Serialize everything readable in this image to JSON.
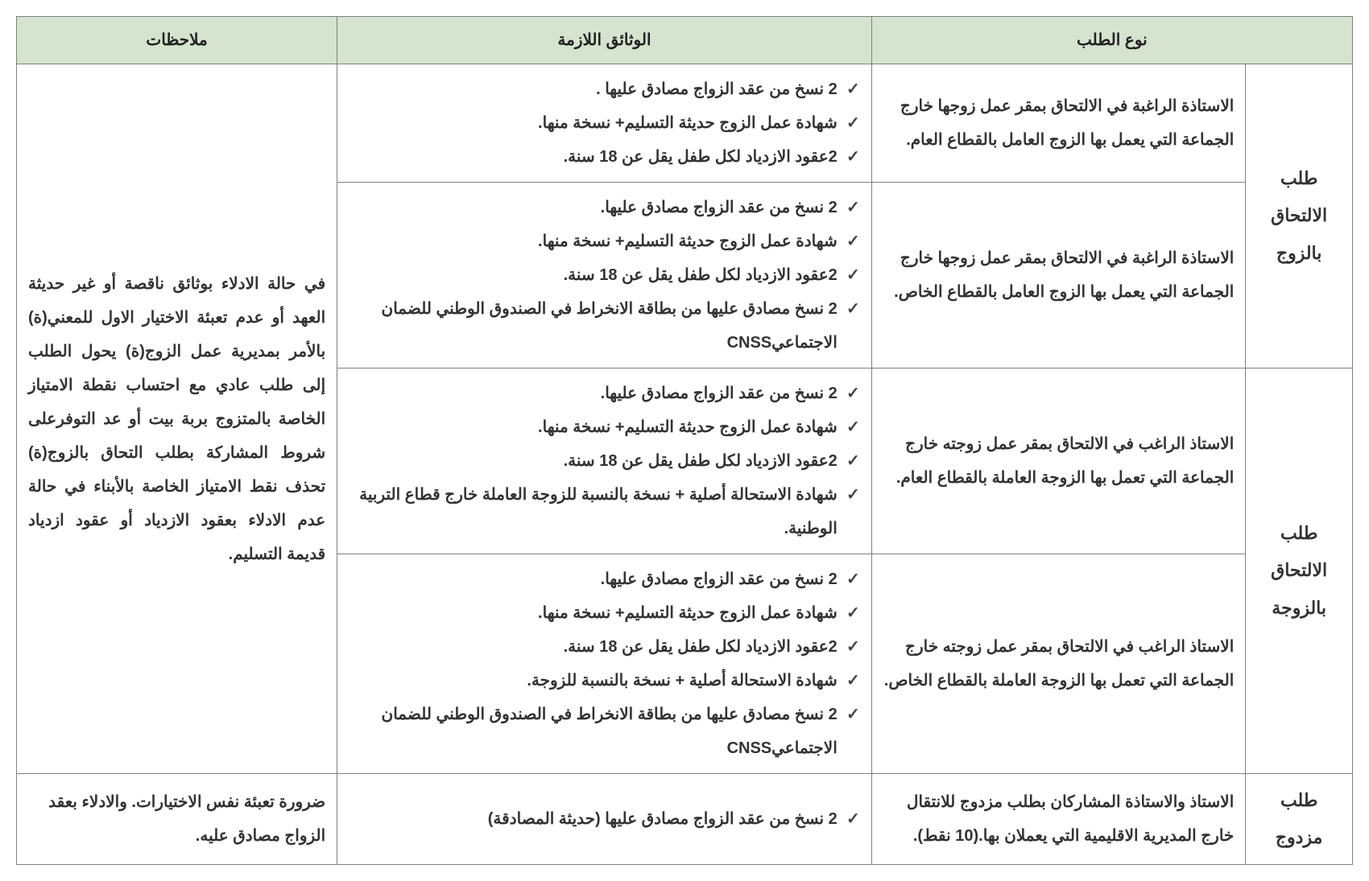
{
  "colors": {
    "header_bg": "#d5e3cf",
    "border": "#808080",
    "text": "#333333",
    "background": "#ffffff"
  },
  "typography": {
    "base_fontsize": 20,
    "header_fontsize": 20,
    "cat_fontsize": 22,
    "line_height": 2.1,
    "weight_body": 600,
    "weight_header": 700
  },
  "columns": {
    "widths_pct": [
      8,
      28,
      40,
      24
    ]
  },
  "headers": {
    "type": "نوع الطلب",
    "docs": "الوثائق اللازمة",
    "notes": "ملاحظات"
  },
  "groups": [
    {
      "category": "طلب الالتحاق بالزوج",
      "rows": [
        {
          "desc": "الاستاذة الراغبة في الالتحاق بمقر عمل زوجها خارج الجماعة التي يعمل بها الزوج العامل بالقطاع العام.",
          "docs": [
            "2 نسخ من عقد الزواج مصادق عليها .",
            "شهادة عمل الزوج حديثة التسليم+ نسخة منها.",
            "2عقود الازدياد لكل طفل يقل عن 18 سنة."
          ]
        },
        {
          "desc": "الاستاذة الراغبة في الالتحاق بمقر عمل زوجها خارج الجماعة التي يعمل بها الزوج العامل بالقطاع الخاص.",
          "docs": [
            "2 نسخ من عقد الزواج مصادق عليها.",
            "شهادة عمل الزوج حديثة التسليم+ نسخة منها.",
            "2عقود الازدياد لكل طفل يقل عن 18 سنة.",
            "2 نسخ مصادق عليها من بطاقة الانخراط في الصندوق الوطني للضمان الاجتماعيCNSS"
          ]
        }
      ]
    },
    {
      "category": "طلب الالتحاق بالزوجة",
      "rows": [
        {
          "desc": "الاستاذ الراغب في الالتحاق بمقر عمل زوجته خارج الجماعة التي تعمل بها الزوجة العاملة بالقطاع العام.",
          "docs": [
            "2 نسخ من عقد الزواج مصادق عليها.",
            "شهادة عمل الزوج حديثة التسليم+ نسخة منها.",
            "2عقود الازدياد لكل طفل يقل عن 18 سنة.",
            "شهادة الاستحالة أصلية + نسخة بالنسبة للزوجة العاملة خارج قطاع التربية الوطنية."
          ]
        },
        {
          "desc": "الاستاذ الراغب في الالتحاق بمقر عمل زوجته خارج الجماعة التي تعمل بها الزوجة العاملة بالقطاع الخاص.",
          "docs": [
            "2 نسخ من عقد الزواج مصادق عليها.",
            "شهادة عمل الزوج حديثة التسليم+ نسخة منها.",
            "2عقود الازدياد لكل طفل يقل عن 18 سنة.",
            "شهادة الاستحالة أصلية + نسخة بالنسبة للزوجة.",
            "2 نسخ مصادق عليها من بطاقة الانخراط في الصندوق الوطني للضمان الاجتماعيCNSS"
          ]
        }
      ]
    }
  ],
  "shared_note": "في حالة الادلاء بوثائق ناقصة أو غير حديثة العهد أو عدم تعبئة الاختيار الاول للمعني(ة) بالأمر بمديرية عمل الزوج(ة) يحول الطلب إلى طلب عادي مع احتساب نقطة الامتياز الخاصة بالمتزوج بربة بيت أو عد التوفرعلى شروط المشاركة بطلب التحاق بالزوج(ة) تحذف نقط الامتياز الخاصة بالأبناء في حالة عدم الادلاء بعقود الازدياد أو عقود ازدياد قديمة التسليم.",
  "double_row": {
    "category": "طلب مزدوج",
    "desc": "الاستاذ والاستاذة المشاركان بطلب مزدوج للانتقال خارج المديرية الاقليمية التي يعملان بها.(10 نقط).",
    "docs": [
      "2 نسخ من عقد الزواج مصادق عليها (حديثة المصادقة)"
    ],
    "note": "ضرورة تعبئة نفس الاختيارات. والادلاء بعقد الزواج مصادق عليه."
  }
}
